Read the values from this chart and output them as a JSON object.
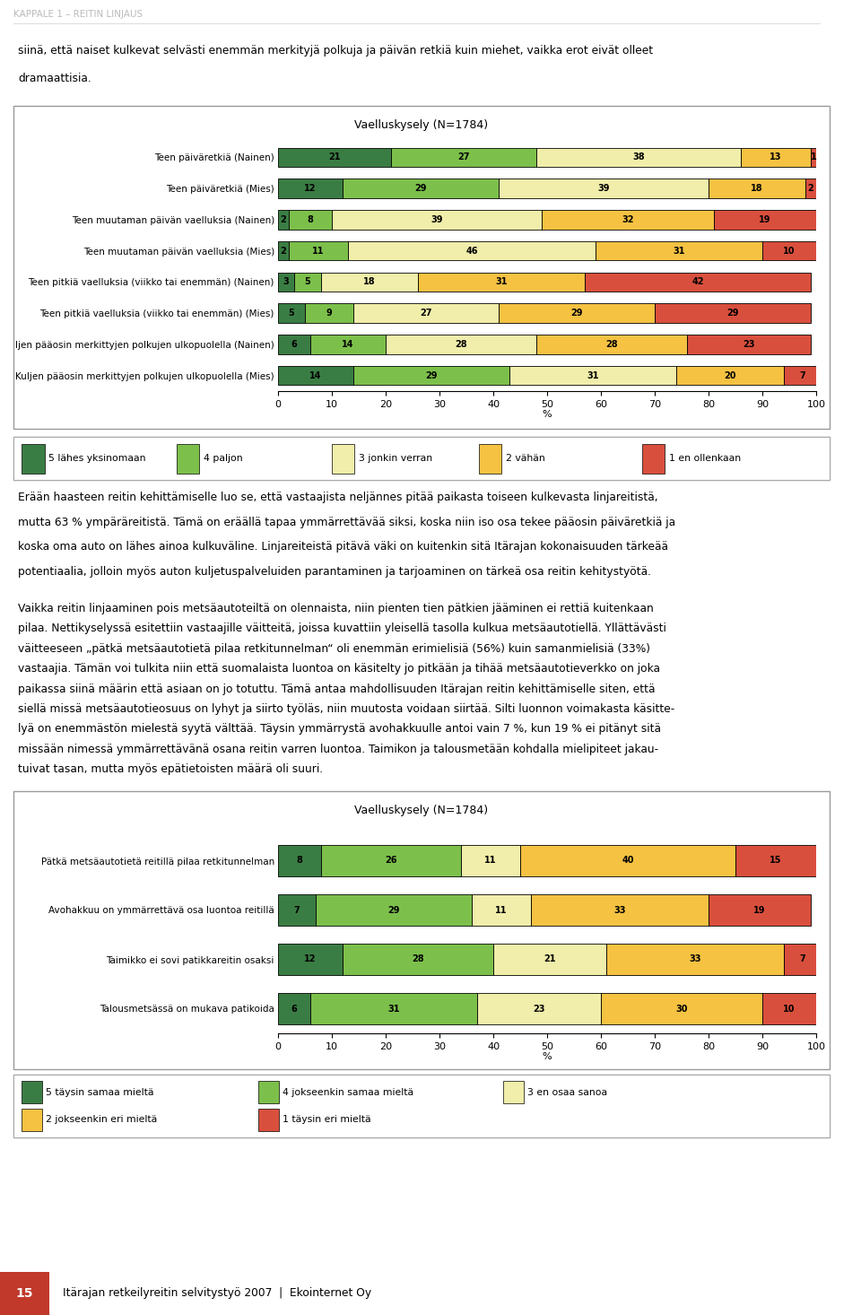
{
  "chart1": {
    "title": "Vaelluskysely (N=1784)",
    "categories": [
      "Teen päiväretkiä (Nainen)",
      "Teen päiväretkiä (Mies)",
      "Teen muutaman päivän vaelluksia (Nainen)",
      "Teen muutaman päivän vaelluksia (Mies)",
      "Teen pitkiä vaelluksia (viikko tai enemmän) (Nainen)",
      "Teen pitkiä vaelluksia (viikko tai enemmän) (Mies)",
      "Ijen pääosin merkittyjen polkujen ulkopuolella (Nainen)",
      "Kuljen pääosin merkittyjen polkujen ulkopuolella (Mies)"
    ],
    "data": [
      [
        21,
        27,
        38,
        13,
        1
      ],
      [
        12,
        29,
        39,
        18,
        2
      ],
      [
        2,
        8,
        39,
        32,
        19
      ],
      [
        2,
        11,
        46,
        31,
        10
      ],
      [
        3,
        5,
        18,
        31,
        42
      ],
      [
        5,
        9,
        27,
        29,
        29
      ],
      [
        6,
        14,
        28,
        28,
        23
      ],
      [
        14,
        29,
        31,
        20,
        7
      ]
    ],
    "colors": [
      "#3a7d44",
      "#7cc04b",
      "#f0eeaa",
      "#f5c242",
      "#d94f3d"
    ],
    "legend_labels": [
      "5 lähes yksinomaan",
      "4 paljon",
      "3 jonkin verran",
      "2 vähän",
      "1 en ollenkaan"
    ],
    "xlabel": "%"
  },
  "chart2": {
    "title": "Vaelluskysely (N=1784)",
    "categories": [
      "Pätkä metsäautotietä reitillä pilaa retkitunnelman",
      "Avohakkuu on ymmärrettävä osa luontoa reitillä",
      "Taimikko ei sovi patikkareitin osaksi",
      "Talousmetsässä on mukava patikoida"
    ],
    "data": [
      [
        8,
        26,
        11,
        40,
        15
      ],
      [
        7,
        29,
        11,
        33,
        19
      ],
      [
        12,
        28,
        21,
        33,
        7
      ],
      [
        6,
        31,
        23,
        30,
        10
      ]
    ],
    "colors": [
      "#3a7d44",
      "#7cc04b",
      "#f0eeaa",
      "#f5c242",
      "#d94f3d"
    ],
    "legend_labels": [
      "5 täysin samaa mieltä",
      "4 jokseenkin samaa mieltä",
      "3 en osaa sanoa",
      "2 jokseenkin eri mieltä",
      "1 täysin eri mieltä"
    ],
    "xlabel": "%"
  },
  "page_header": "KAPPALE 1 – REITIN LINJAUS",
  "page_number": "15",
  "footer_text": "Itärajan retkeilyreitin selvitystyö 2007  |  Ekointernet Oy",
  "body_text1_lines": [
    "siinä, että naiset kulkevat selvästi enemmän merkityjä polkuja ja päivän retkiä kuin miehet, vaikka erot eivät olleet",
    "dramaattisia."
  ],
  "body_text2_lines": [
    "Erään haasteen reitin kehittämiselle luo se, että vastaajista neljännes pitää paikasta toiseen kulkevasta linjareitistä,",
    "mutta 63 % ympäräreitistä. Tämä on eräällä tapaa ymmärrettävää siksi, koska niin iso osa tekee pääosin päiväretkiä ja",
    "koska oma auto on lähes ainoa kulkuväline. Linjareiteistä pitävä väki on kuitenkin sitä Itärajan kokonaisuuden tärkeää",
    "potentiaalia, jolloin myös auton kuljetuspalveluiden parantaminen ja tarjoaminen on tärkeä osa reitin kehitystyötä."
  ],
  "body_text3_lines": [
    "Vaikka reitin linjaaminen pois metsäautoteiltä on olennaista, niin pienten tien pätkien jääminen ei rettiä kuitenkaan",
    "pilaa. Nettikyselyssä esitettiin vastaajille väitteitä, joissa kuvattiin yleisellä tasolla kulkua metsäautotiellä. Yllättävästi",
    "väitteeseen „pätkä metsäautotietä pilaa retkitunnelman“ oli enemmän erimielisiä (56%) kuin samanmielisiä (33%)",
    "vastaajia. Tämän voi tulkita niin että suomalaista luontoa on käsitelty jo pitkään ja tihää metsäautotieverkko on joka",
    "paikassa siinä määrin että asiaan on jo totuttu. Tämä antaa mahdollisuuden Itärajan reitin kehittämiselle siten, että",
    "siellä missä metsäautotieosuus on lyhyt ja siirto työläs, niin muutosta voidaan siirtää. Silti luonnon voimakasta käsitte-",
    "lyä on enemmästön mielestä syytä välttää. Täysin ymmärrystä avohakkuulle antoi vain 7 %, kun 19 % ei pitänyt sitä",
    "missään nimessä ymmärrettävänä osana reitin varren luontoa. Taimikon ja talousmetään kohdalla mielipiteet jakau-",
    "tuivat tasan, mutta myös epätietoisten määrä oli suuri."
  ]
}
